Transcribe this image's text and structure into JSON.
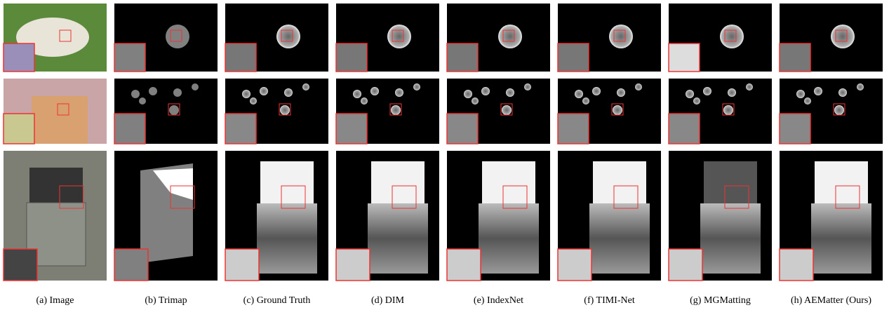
{
  "captions": [
    "(a) Image",
    "(b) Trimap",
    "(c) Ground Truth",
    "(d) DIM",
    "(e) IndexNet",
    "(f) TIMI-Net",
    "(g) MGMatting",
    "(h) AEMatter (Ours)"
  ]
}
